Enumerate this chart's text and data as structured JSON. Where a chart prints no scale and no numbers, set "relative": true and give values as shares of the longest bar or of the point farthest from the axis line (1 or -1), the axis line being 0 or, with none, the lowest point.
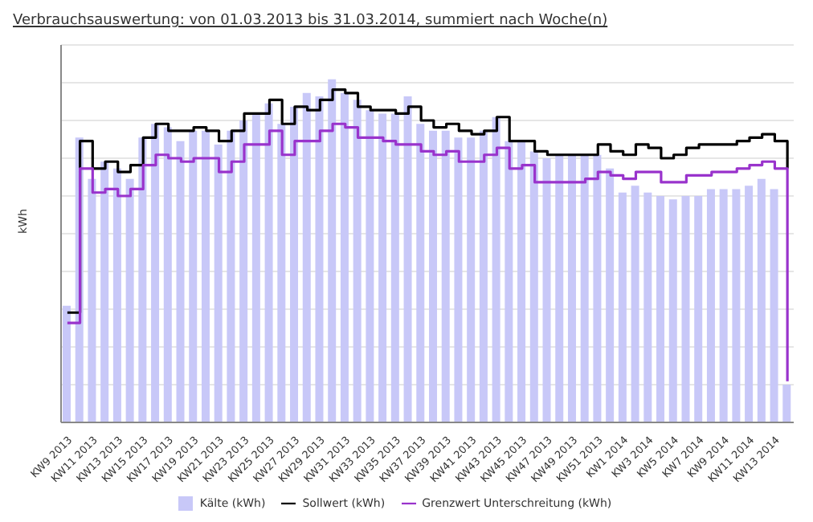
{
  "chart_data": {
    "type": "bar",
    "title": "Verbrauchsauswertung: von 01.03.2013 bis 31.03.2014, summiert nach Woche(n)",
    "ylabel": "kWh",
    "relative": true,
    "grid": "y",
    "legend": "bottom",
    "categories": [
      "KW9 2013",
      null,
      "KW11 2013",
      null,
      "KW13 2013",
      null,
      "KW15 2013",
      null,
      "KW17 2013",
      null,
      "KW19 2013",
      null,
      "KW21 2013",
      null,
      "KW23 2013",
      null,
      "KW25 2013",
      null,
      "KW27 2013",
      null,
      "KW29 2013",
      null,
      "KW31 2013",
      null,
      "KW33 2013",
      null,
      "KW35 2013",
      null,
      "KW37 2013",
      null,
      "KW39 2013",
      null,
      "KW41 2013",
      null,
      "KW43 2013",
      null,
      "KW45 2013",
      null,
      "KW47 2013",
      null,
      "KW49 2013",
      null,
      "KW51 2013",
      null,
      "KW1 2014",
      null,
      "KW3 2014",
      null,
      "KW5 2014",
      null,
      "KW7 2014",
      null,
      "KW9 2014",
      null,
      "KW11 2014",
      null,
      "KW13 2014",
      null
    ],
    "series": [
      {
        "name": "Kälte (kWh)",
        "color": "#c8c8f8",
        "values": [
          0.34,
          0.83,
          0.71,
          0.76,
          0.74,
          0.71,
          0.83,
          0.87,
          0.86,
          0.82,
          0.85,
          0.85,
          0.81,
          0.85,
          0.88,
          0.9,
          0.93,
          0.87,
          0.92,
          0.96,
          0.95,
          1,
          0.96,
          0.94,
          0.91,
          0.9,
          0.9,
          0.95,
          0.87,
          0.85,
          0.85,
          0.83,
          0.83,
          0.85,
          0.89,
          0.82,
          0.82,
          0.79,
          0.77,
          0.78,
          0.78,
          0.78,
          0.78,
          0.74,
          0.67,
          0.69,
          0.67,
          0.66,
          0.65,
          0.66,
          0.66,
          0.68,
          0.68,
          0.68,
          0.69,
          0.71,
          0.68,
          0.11
        ]
      },
      {
        "name": "Sollwert (kWh)",
        "type": "step",
        "color": "#000000",
        "values": [
          0.32,
          0.82,
          0.74,
          0.76,
          0.73,
          0.75,
          0.83,
          0.87,
          0.85,
          0.85,
          0.86,
          0.85,
          0.82,
          0.85,
          0.9,
          0.9,
          0.94,
          0.87,
          0.92,
          0.91,
          0.94,
          0.97,
          0.96,
          0.92,
          0.91,
          0.91,
          0.9,
          0.92,
          0.88,
          0.86,
          0.87,
          0.85,
          0.84,
          0.85,
          0.89,
          0.82,
          0.82,
          0.79,
          0.78,
          0.78,
          0.78,
          0.78,
          0.81,
          0.79,
          0.78,
          0.81,
          0.8,
          0.77,
          0.78,
          0.8,
          0.81,
          0.81,
          0.81,
          0.82,
          0.83,
          0.84,
          0.82,
          0.74
        ]
      },
      {
        "name": "Grenzwert Unterschreitung (kWh)",
        "type": "step",
        "color": "#9933cc",
        "values": [
          0.29,
          0.74,
          0.67,
          0.68,
          0.66,
          0.68,
          0.75,
          0.78,
          0.77,
          0.76,
          0.77,
          0.77,
          0.73,
          0.76,
          0.81,
          0.81,
          0.85,
          0.78,
          0.82,
          0.82,
          0.85,
          0.87,
          0.86,
          0.83,
          0.83,
          0.82,
          0.81,
          0.81,
          0.79,
          0.78,
          0.79,
          0.76,
          0.76,
          0.78,
          0.8,
          0.74,
          0.75,
          0.7,
          0.7,
          0.7,
          0.7,
          0.71,
          0.73,
          0.72,
          0.71,
          0.73,
          0.73,
          0.7,
          0.7,
          0.72,
          0.72,
          0.73,
          0.73,
          0.74,
          0.75,
          0.76,
          0.74,
          0.12
        ]
      }
    ]
  }
}
